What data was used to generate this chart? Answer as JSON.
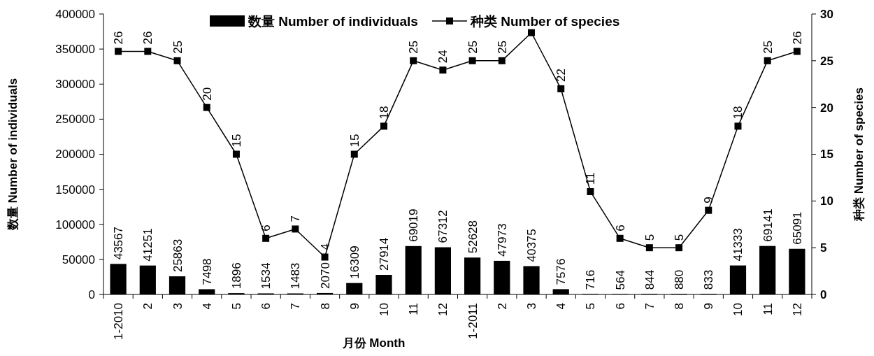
{
  "chart_data": {
    "type": "bar",
    "xlabel": "月份 Month",
    "ylabel": "数量 Number of individuals",
    "y2label": "种类 Number of species",
    "categories": [
      "1-2010",
      "2",
      "3",
      "4",
      "5",
      "6",
      "7",
      "8",
      "9",
      "10",
      "11",
      "12",
      "1-2011",
      "2",
      "3",
      "4",
      "5",
      "6",
      "7",
      "8",
      "9",
      "10",
      "11",
      "12"
    ],
    "series": [
      {
        "name": "数量 Number of individuals",
        "color": "#000000",
        "values": [
          43567,
          41251,
          25863,
          7498,
          1896,
          1534,
          1483,
          2070,
          16309,
          27914,
          69019,
          67312,
          52628,
          47973,
          40375,
          7576,
          716,
          564,
          844,
          880,
          833,
          41333,
          69141,
          65091
        ],
        "value_labels": [
          "43567",
          "41251",
          "25863",
          "7498",
          "1896",
          "1534",
          "1483",
          "2070",
          "16309",
          "27914",
          "69019",
          "67312",
          "52628",
          "47973",
          "40375",
          "7576",
          "716",
          "564",
          "844",
          "880",
          "833",
          "41333",
          "69141",
          "65091"
        ]
      },
      {
        "name": "种类 Number of species",
        "type": "line",
        "axis": "y2",
        "color": "#000000",
        "marker": "square",
        "values": [
          26,
          26,
          25,
          20,
          15,
          6,
          7,
          4,
          15,
          18,
          25,
          24,
          25,
          25,
          28,
          22,
          11,
          6,
          5,
          5,
          9,
          18,
          25,
          26
        ],
        "value_labels": [
          "26",
          "26",
          "25",
          "20",
          "15",
          "6",
          "7",
          "4",
          "15",
          "18",
          "25",
          "24",
          "25",
          "25",
          null,
          "22",
          "11",
          "6",
          "5",
          "5",
          "9",
          "18",
          "25",
          "26"
        ]
      }
    ],
    "ylim": [
      0,
      400000
    ],
    "yticks": [
      0,
      50000,
      100000,
      150000,
      200000,
      250000,
      300000,
      350000,
      400000
    ],
    "y2lim": [
      0,
      30
    ],
    "y2ticks": [
      0,
      5,
      10,
      15,
      20,
      25,
      30
    ],
    "legend": "top",
    "grid": false
  }
}
